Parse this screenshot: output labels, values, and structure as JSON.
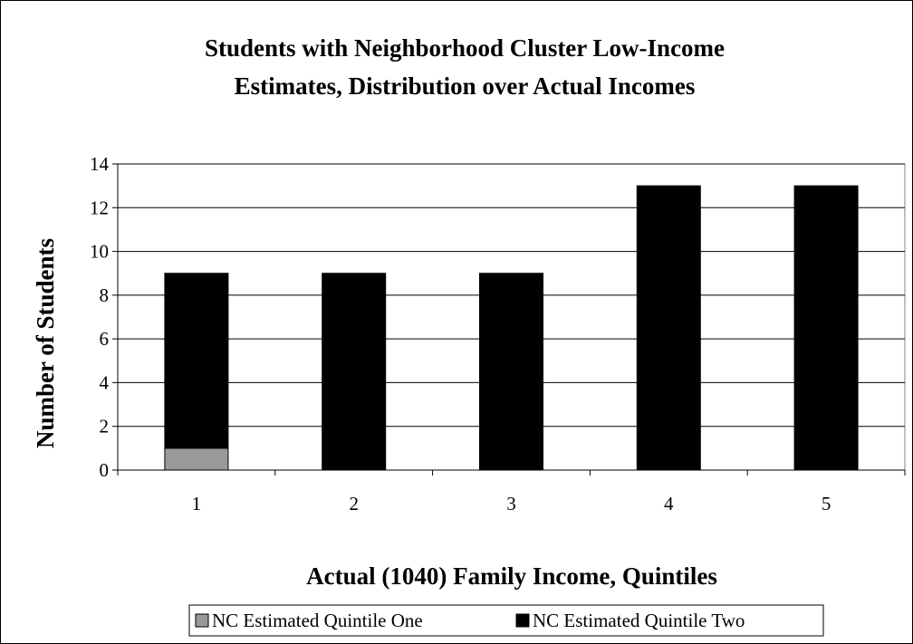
{
  "chart_data": {
    "type": "bar",
    "stacked": true,
    "title_lines": [
      "Students with Neighborhood Cluster Low-Income",
      "Estimates, Distribution over Actual Incomes"
    ],
    "xlabel": "Actual (1040) Family Income, Quintiles",
    "ylabel": "Number of  Students",
    "categories": [
      "1",
      "2",
      "3",
      "4",
      "5"
    ],
    "ylim": [
      0,
      14
    ],
    "yticks": [
      "0",
      "2",
      "4",
      "6",
      "8",
      "10",
      "12",
      "14"
    ],
    "grid": true,
    "legend_position": "bottom",
    "series": [
      {
        "name": "NC Estimated Quintile One",
        "values": [
          1,
          0,
          0,
          0,
          0
        ],
        "color": "#999999"
      },
      {
        "name": "NC Estimated Quintile Two",
        "values": [
          8,
          9,
          9,
          13,
          13
        ],
        "color": "#000000"
      }
    ]
  }
}
